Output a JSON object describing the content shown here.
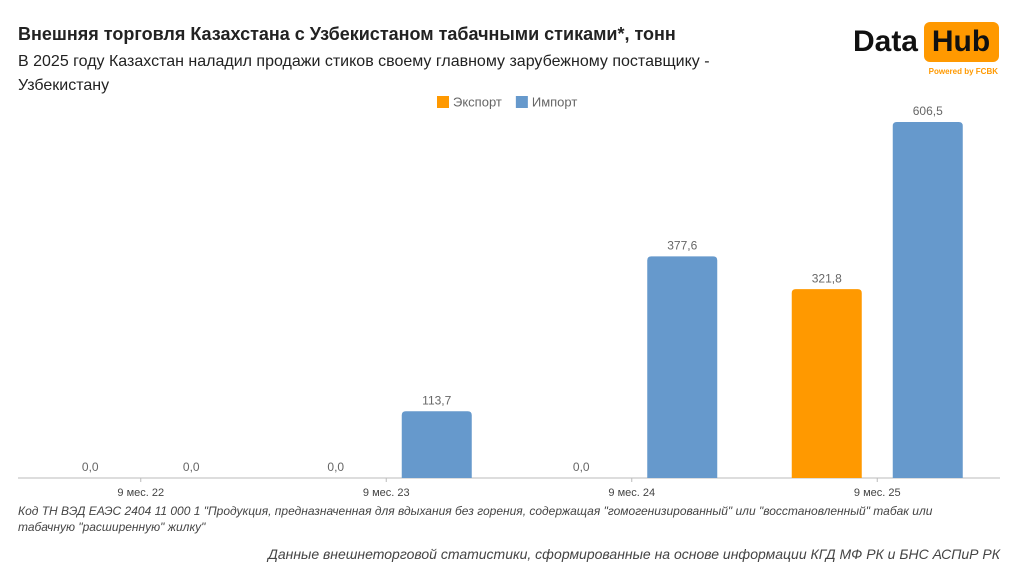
{
  "logo": {
    "left": "Data",
    "right": "Hub",
    "tagline": "Powered by FCBK"
  },
  "chart_data": {
    "type": "bar",
    "title": "Внешняя торговля Казахстана с Узбекистаном табачными стиками*, тонн",
    "subtitle": "В 2025 году Казахстан наладил продажи стиков своему главному зарубежному поставщику - Узбекистану",
    "categories": [
      "9 мес. 22",
      "9 мес. 23",
      "9 мес. 24",
      "9 мес. 25"
    ],
    "series": [
      {
        "name": "Экспорт",
        "color": "#ff9900",
        "values": [
          0,
          0,
          0,
          321.8
        ],
        "value_labels": [
          "0,0",
          "0,0",
          "0,0",
          "321,8"
        ]
      },
      {
        "name": "Импорт",
        "color": "#6699cc",
        "values": [
          0,
          113.7,
          377.6,
          606.5
        ],
        "value_labels": [
          "0,0",
          "113,7",
          "377,6",
          "606,5"
        ]
      }
    ],
    "legend": "top",
    "footnote": "Код ТН ВЭД ЕАЭС 2404 11 000 1 \"Продукция, предназначенная для вдыхания без горения, содержащая \"гомогенизированный\" или \"восстановленный\" табак или табачную \"расширенную\" жилку\"",
    "source": "Данные внешнеторговой статистики, сформированные на основе информации КГД МФ РК и БНС АСПиР РК"
  }
}
